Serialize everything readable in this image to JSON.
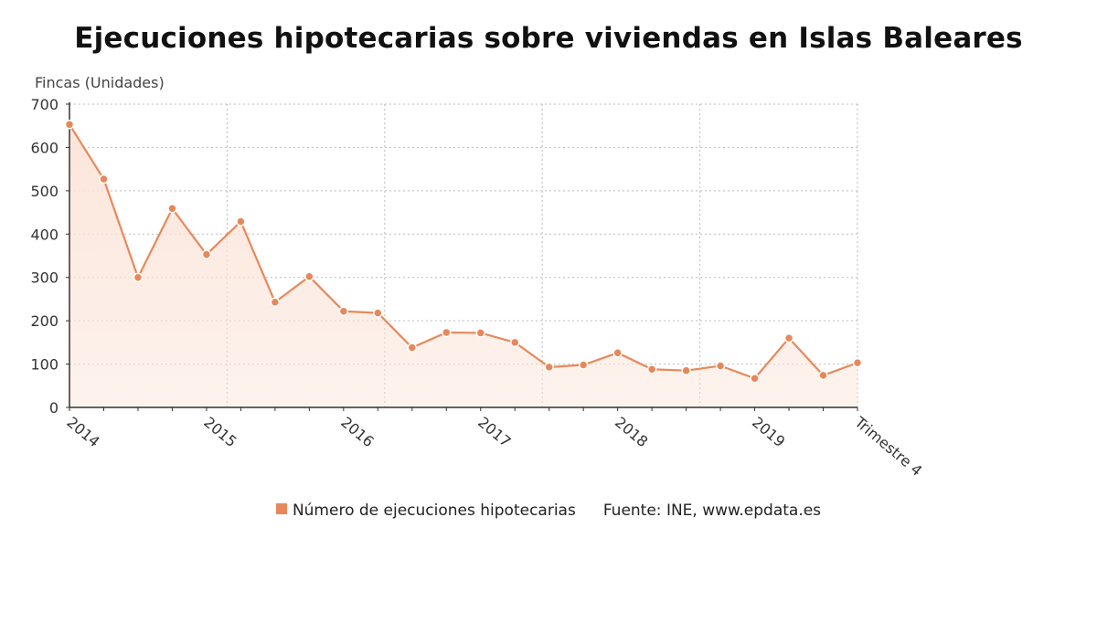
{
  "page": {
    "title": "Ejecuciones hipotecarias sobre viviendas en Islas Baleares"
  },
  "colors": {
    "line": "#e8885a",
    "fill": "#fbe4d8",
    "grid": "#bbbbbb",
    "axis": "#333333"
  },
  "legend": {
    "series_label": "Número de ejecuciones hipotecarias",
    "source": "Fuente: INE, www.epdata.es"
  },
  "chart_data": {
    "type": "area",
    "title": "Ejecuciones hipotecarias sobre viviendas en Islas Baleares",
    "ylabel": "Fincas (Unidades)",
    "xlabel": "",
    "ylim": [
      0,
      700
    ],
    "yticks": [
      0,
      100,
      200,
      300,
      400,
      500,
      600,
      700
    ],
    "grid": true,
    "legend_position": "bottom",
    "x": [
      "2014-T1",
      "2014-T2",
      "2014-T3",
      "2014-T4",
      "2015-T1",
      "2015-T2",
      "2015-T3",
      "2015-T4",
      "2016-T1",
      "2016-T2",
      "2016-T3",
      "2016-T4",
      "2017-T1",
      "2017-T2",
      "2017-T3",
      "2017-T4",
      "2018-T1",
      "2018-T2",
      "2018-T3",
      "2018-T4",
      "2019-T1",
      "2019-T2",
      "2019-T3",
      "2019-T4"
    ],
    "x_tick_labels": [
      {
        "index": 0,
        "label": "2014"
      },
      {
        "index": 4,
        "label": "2015"
      },
      {
        "index": 8,
        "label": "2016"
      },
      {
        "index": 12,
        "label": "2017"
      },
      {
        "index": 16,
        "label": "2018"
      },
      {
        "index": 20,
        "label": "2019"
      },
      {
        "index": 23,
        "label": "Trimestre 4"
      }
    ],
    "series": [
      {
        "name": "Número de ejecuciones hipotecarias",
        "values": [
          653,
          527,
          300,
          459,
          353,
          429,
          243,
          302,
          222,
          218,
          138,
          173,
          172,
          150,
          93,
          98,
          126,
          88,
          85,
          96,
          67,
          160,
          74,
          103
        ]
      }
    ]
  }
}
